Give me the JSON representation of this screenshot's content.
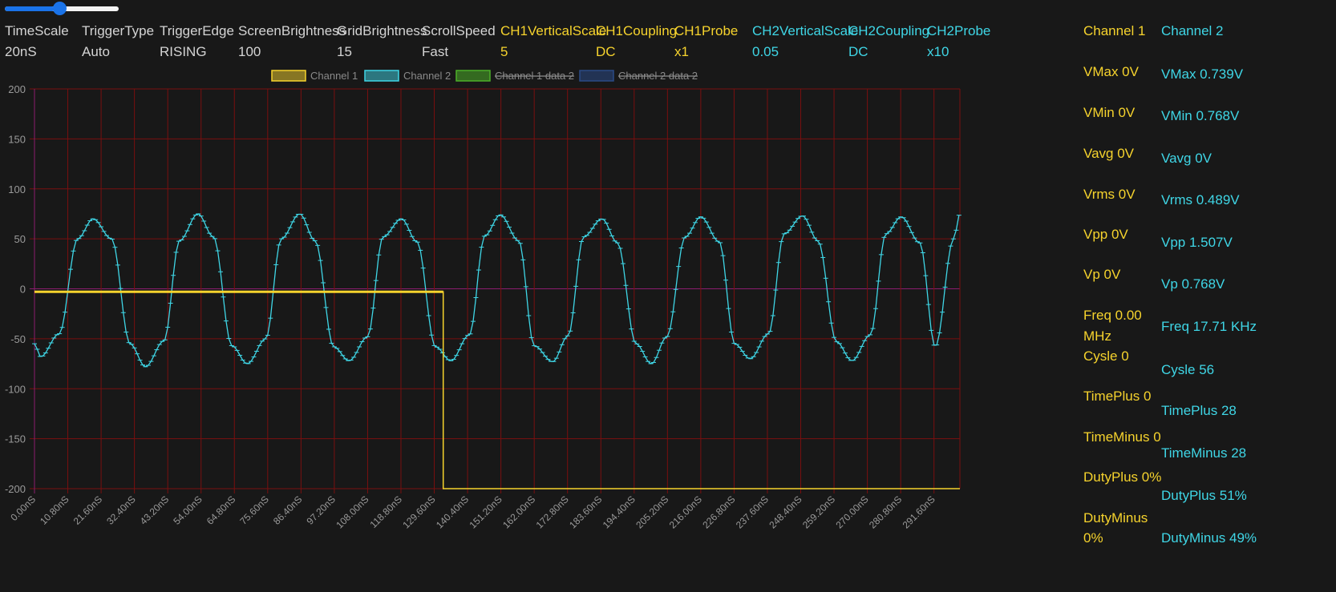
{
  "slider": {
    "value_fraction": 0.48
  },
  "params": [
    {
      "label": "TimeScale",
      "value": "20nS",
      "channel": "none"
    },
    {
      "label": "TriggerType",
      "value": "Auto",
      "channel": "none"
    },
    {
      "label": "TriggerEdge",
      "value": "RISING",
      "channel": "none"
    },
    {
      "label": "ScreenBrightness",
      "value": "100",
      "channel": "none"
    },
    {
      "label": "GridBrightness",
      "value": "15",
      "channel": "none"
    },
    {
      "label": "ScrollSpeed",
      "value": "Fast",
      "channel": "none"
    },
    {
      "label": "CH1VerticalScale",
      "value": "5",
      "channel": "ch1"
    },
    {
      "label": "CH1Coupling",
      "value": "DC",
      "channel": "ch1"
    },
    {
      "label": "CH1Probe",
      "value": "x1",
      "channel": "ch1"
    },
    {
      "label": "CH2VerticalScale",
      "value": "0.05",
      "channel": "ch2"
    },
    {
      "label": "CH2Coupling",
      "value": "DC",
      "channel": "ch2"
    },
    {
      "label": "CH2Probe",
      "value": "x10",
      "channel": "ch2"
    }
  ],
  "measurements": {
    "ch1": {
      "title": "Channel 1",
      "items": [
        "VMax 0V",
        "VMin 0V",
        "Vavg 0V",
        "Vrms 0V",
        "Vpp 0V",
        "Vp 0V",
        "Freq 0.00",
        "MHz",
        "Cysle 0",
        "TimePlus 0",
        "TimeMinus 0",
        "DutyPlus 0%",
        "DutyMinus",
        "0%"
      ]
    },
    "ch2": {
      "title": "Channel 2",
      "items": [
        "VMax 0.739V",
        "VMin 0.768V",
        "Vavg 0V",
        "Vrms 0.489V",
        "Vpp 1.507V",
        "Vp 0.768V",
        "Freq 17.71 KHz",
        "Cysle 56",
        "TimePlus 28",
        "TimeMinus 28",
        "DutyPlus 51%",
        "DutyMinus 49%"
      ]
    }
  },
  "colors": {
    "ch1": "#f6d32d",
    "ch2": "#3fd6e6",
    "grid": "#7a0f0f",
    "axis_zero": "#8c1d6e",
    "legend_green": "#4caf28",
    "legend_blue": "#2b4a86"
  },
  "chart_data": {
    "type": "line",
    "legend": [
      {
        "name": "Channel 1",
        "color": "#f6d32d",
        "hidden": false
      },
      {
        "name": "Channel 2",
        "color": "#3fd6e6",
        "hidden": false
      },
      {
        "name": "Channel 1 data 2",
        "color": "#4caf28",
        "hidden": true
      },
      {
        "name": "Channel 2 data 2",
        "color": "#2b4a86",
        "hidden": true
      }
    ],
    "legend_position": "top-center",
    "grid": true,
    "ylim": [
      -200,
      200
    ],
    "yticks": [
      200,
      150,
      100,
      50,
      0,
      -50,
      -100,
      -150,
      -200
    ],
    "xlim": [
      0,
      300
    ],
    "xunit": "nS",
    "xticks": [
      "0.00nS",
      "10.80nS",
      "21.60nS",
      "32.40nS",
      "43.20nS",
      "54.00nS",
      "64.80nS",
      "75.60nS",
      "86.40nS",
      "97.20nS",
      "108.00nS",
      "118.80nS",
      "129.60nS",
      "140.40nS",
      "151.20nS",
      "162.00nS",
      "172.80nS",
      "183.60nS",
      "194.40nS",
      "205.20nS",
      "216.00nS",
      "226.80nS",
      "237.60nS",
      "248.40nS",
      "259.20nS",
      "270.00nS",
      "280.80nS",
      "291.60nS"
    ],
    "series": [
      {
        "name": "Channel 1",
        "x": [
          0,
          132.5,
          132.5,
          300
        ],
        "y": [
          -3,
          -3,
          -200,
          -200
        ]
      },
      {
        "name": "Channel 2",
        "x": [
          0,
          2,
          8,
          14,
          19,
          25,
          31,
          36,
          42,
          47,
          53,
          58,
          64,
          69,
          75,
          80,
          86,
          91,
          97,
          102,
          108,
          113,
          119,
          124,
          130,
          135,
          141,
          146,
          151,
          157,
          162,
          168,
          173,
          178,
          184,
          189,
          195,
          200,
          205,
          211,
          216,
          222,
          227,
          232,
          238,
          243,
          249,
          254,
          260,
          265,
          271,
          276,
          281,
          287,
          292,
          298,
          300
        ],
        "y": [
          -55,
          -68,
          -45,
          50,
          70,
          50,
          -55,
          -78,
          -52,
          48,
          75,
          52,
          -57,
          -75,
          -50,
          50,
          75,
          48,
          -58,
          -72,
          -48,
          52,
          70,
          47,
          -58,
          -72,
          -46,
          53,
          74,
          48,
          -57,
          -73,
          -47,
          52,
          70,
          46,
          -55,
          -75,
          -48,
          52,
          72,
          47,
          -55,
          -70,
          -45,
          55,
          73,
          48,
          -53,
          -72,
          -46,
          55,
          72,
          46,
          -58,
          50,
          75
        ]
      }
    ]
  }
}
